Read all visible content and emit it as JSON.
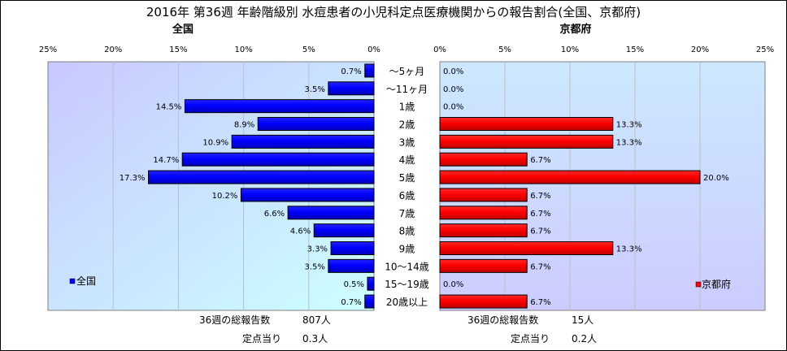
{
  "title": "2016年 第36週 年齢階級別 水痘患者の小児科定点医療機関からの報告割合(全国、京都府)",
  "colors": {
    "national": "#0000ff",
    "kyoto": "#ff0000",
    "plot_bg_left": "#ccecff",
    "plot_bg_right": "#ccccff"
  },
  "chart_data": [
    {
      "type": "bar",
      "orientation": "horizontal",
      "subtitle": "全国",
      "legend": "全国",
      "legend_position": "bottom-left",
      "categories": [
        "～5ヶ月",
        "～11ヶ月",
        "1歳",
        "2歳",
        "3歳",
        "4歳",
        "5歳",
        "6歳",
        "7歳",
        "8歳",
        "9歳",
        "10～14歳",
        "15～19歳",
        "20歳以上"
      ],
      "values": [
        0.7,
        3.5,
        14.5,
        8.9,
        10.9,
        14.7,
        17.3,
        10.2,
        6.6,
        4.6,
        3.3,
        3.5,
        0.5,
        0.7
      ],
      "value_labels": [
        "0.7%",
        "3.5%",
        "14.5%",
        "8.9%",
        "10.9%",
        "14.7%",
        "17.3%",
        "10.2%",
        "6.6%",
        "4.6%",
        "3.3%",
        "3.5%",
        "0.5%",
        "0.7%"
      ],
      "xlim": [
        0,
        25
      ],
      "ticks": [
        "25%",
        "20%",
        "15%",
        "10%",
        "5%",
        "0%"
      ],
      "direction": "reversed",
      "grid": true,
      "summary": {
        "total_label": "36週の総報告数",
        "total_value": "807人",
        "per_label": "定点当り",
        "per_value": "0.3人"
      }
    },
    {
      "type": "bar",
      "orientation": "horizontal",
      "subtitle": "京都府",
      "legend": "京都府",
      "legend_position": "bottom-right",
      "categories": [
        "～5ヶ月",
        "～11ヶ月",
        "1歳",
        "2歳",
        "3歳",
        "4歳",
        "5歳",
        "6歳",
        "7歳",
        "8歳",
        "9歳",
        "10～14歳",
        "15～19歳",
        "20歳以上"
      ],
      "values": [
        0.0,
        0.0,
        0.0,
        13.3,
        13.3,
        6.7,
        20.0,
        6.7,
        6.7,
        6.7,
        13.3,
        6.7,
        0.0,
        6.7
      ],
      "value_labels": [
        "0.0%",
        "0.0%",
        "0.0%",
        "13.3%",
        "13.3%",
        "6.7%",
        "20.0%",
        "6.7%",
        "6.7%",
        "6.7%",
        "13.3%",
        "6.7%",
        "0.0%",
        "6.7%"
      ],
      "xlim": [
        0,
        25
      ],
      "ticks": [
        "0%",
        "5%",
        "10%",
        "15%",
        "20%",
        "25%"
      ],
      "grid": true,
      "summary": {
        "total_label": "36週の総報告数",
        "total_value": "15人",
        "per_label": "定点当り",
        "per_value": "0.2人"
      }
    }
  ]
}
